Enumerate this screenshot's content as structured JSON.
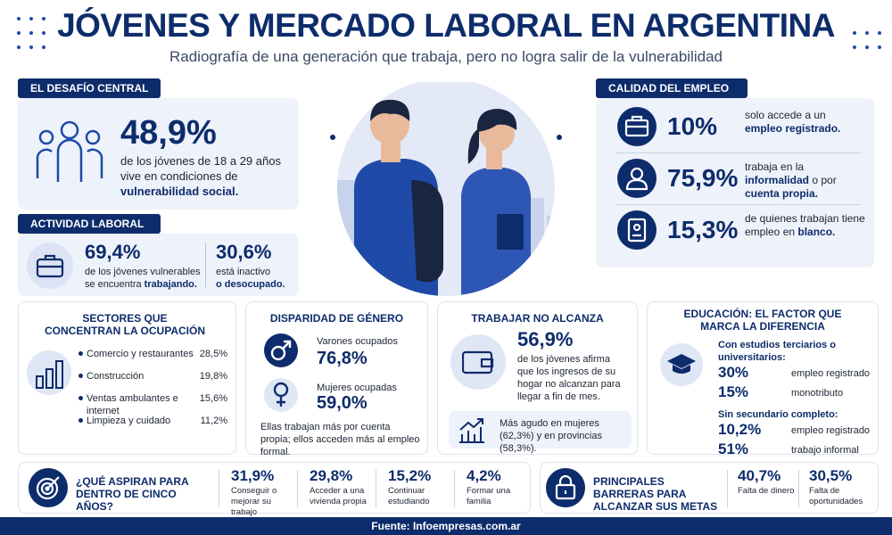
{
  "header": {
    "title": "JÓVENES Y MERCADO LABORAL EN ARGENTINA",
    "subtitle": "Radiografía de una generación que trabaja, pero no logra salir de la vulnerabilidad"
  },
  "challenge": {
    "heading": "EL DESAFÍO CENTRAL",
    "stat": "48,9%",
    "text": "de los jóvenes de 18 a 29 años vive en condiciones de",
    "emphasis": "vulnerabilidad social."
  },
  "activity": {
    "heading": "ACTIVIDAD LABORAL",
    "items": [
      {
        "stat": "69,4%",
        "text": "de los jóvenes vulnerables se encuentra",
        "emphasis": "trabajando."
      },
      {
        "stat": "30,6%",
        "text": "está inactivo",
        "emphasis": "o desocupado."
      }
    ]
  },
  "quality": {
    "heading": "CALIDAD DEL EMPLEO",
    "items": [
      {
        "stat": "10%",
        "parts": [
          {
            "text": "solo accede a un ",
            "bold": false
          },
          {
            "text": "empleo registrado.",
            "bold": true
          }
        ]
      },
      {
        "stat": "75,9%",
        "parts": [
          {
            "text": "trabaja en la ",
            "bold": false
          },
          {
            "text": "informalidad",
            "bold": true
          },
          {
            "text": " o por ",
            "bold": false
          },
          {
            "text": "cuenta propia.",
            "bold": true
          }
        ]
      },
      {
        "stat": "15,3%",
        "parts": [
          {
            "text": "de quienes trabajan tiene empleo en ",
            "bold": false
          },
          {
            "text": "blanco.",
            "bold": true
          }
        ]
      }
    ]
  },
  "sectors": {
    "heading": "SECTORES QUE CONCENTRAN LA OCUPACIÓN",
    "rows": [
      {
        "label": "Comercio y restaurantes",
        "value": "28,5%"
      },
      {
        "label": "Construcción",
        "value": "19,8%"
      },
      {
        "label": "Ventas ambulantes e internet",
        "value": "15,6%"
      },
      {
        "label": "Limpieza y cuidado",
        "value": "11,2%"
      }
    ]
  },
  "gender": {
    "heading": "DISPARIDAD DE GÉNERO",
    "items": [
      {
        "label": "Varones ocupados",
        "value": "76,8%"
      },
      {
        "label": "Mujeres ocupadas",
        "value": "59,0%"
      }
    ],
    "note": "Ellas trabajan más por cuenta propia; ellos acceden más al empleo formal."
  },
  "income": {
    "heading": "TRABAJAR NO ALCANZA",
    "stat": "56,9%",
    "text": "de los jóvenes afirma que los ingresos de su hogar no alcanzan para llegar a fin de mes.",
    "note": "Más agudo en mujeres (62,3%) y en provincias (58,3%)."
  },
  "education": {
    "heading": "EDUCACIÓN: EL FACTOR QUE MARCA LA DIFERENCIA",
    "groups": [
      {
        "label": "Con estudios terciarios o universitarios:",
        "rows": [
          {
            "value": "30%",
            "label": "empleo registrado"
          },
          {
            "value": "15%",
            "label": "monotributo"
          }
        ]
      },
      {
        "label": "Sin secundario completo:",
        "rows": [
          {
            "value": "10,2%",
            "label": "empleo registrado"
          },
          {
            "value": "51%",
            "label": "trabajo informal"
          }
        ]
      }
    ]
  },
  "aspirations": {
    "heading": "¿QUÉ ASPIRAN PARA DENTRO DE CINCO AÑOS?",
    "items": [
      {
        "value": "31,9%",
        "label": "Conseguir o mejorar su trabajo"
      },
      {
        "value": "29,8%",
        "label": "Acceder a una vivienda propia"
      },
      {
        "value": "15,2%",
        "label": "Continuar estudiando"
      },
      {
        "value": "4,2%",
        "label": "Formar una familia"
      }
    ]
  },
  "barriers": {
    "heading": "PRINCIPALES BARRERAS PARA ALCANZAR SUS METAS",
    "items": [
      {
        "value": "40,7%",
        "label": "Falta de dinero"
      },
      {
        "value": "30,5%",
        "label": "Falta de oportunidades"
      }
    ]
  },
  "footer": {
    "source": "Fuente: Infoempresas.com.ar"
  }
}
